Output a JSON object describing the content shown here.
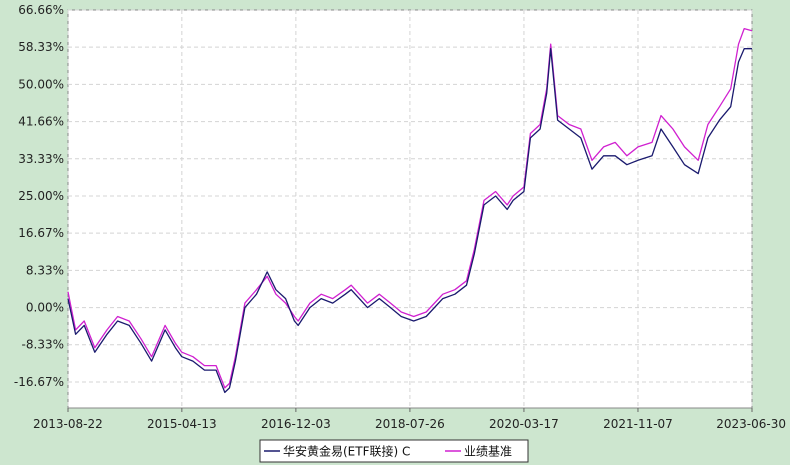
{
  "chart_data": {
    "type": "line",
    "title": "",
    "xlabel": "",
    "ylabel": "",
    "ylim": [
      -22.5,
      66.66
    ],
    "x_ticks": [
      "2013-08-22",
      "2015-04-13",
      "2016-12-03",
      "2018-07-26",
      "2020-03-17",
      "2021-11-07",
      "2023-06-30"
    ],
    "y_ticks": [
      "66.66%",
      "58.33%",
      "50.00%",
      "41.66%",
      "33.33%",
      "25.00%",
      "16.67%",
      "8.33%",
      "0.00%",
      "-8.33%",
      "-16.67%"
    ],
    "y_tick_values": [
      66.66,
      58.33,
      50.0,
      41.66,
      33.33,
      25.0,
      16.67,
      8.33,
      0.0,
      -8.33,
      -16.67
    ],
    "grid": true,
    "legend_position": "bottom-center",
    "x": [
      "2013-08-22",
      "2013-10-01",
      "2013-11-15",
      "2014-01-10",
      "2014-03-15",
      "2014-05-10",
      "2014-07-10",
      "2014-09-10",
      "2014-11-05",
      "2015-01-15",
      "2015-03-10",
      "2015-04-13",
      "2015-06-10",
      "2015-08-10",
      "2015-10-10",
      "2015-11-25",
      "2015-12-20",
      "2016-01-20",
      "2016-03-10",
      "2016-05-10",
      "2016-07-05",
      "2016-08-20",
      "2016-10-10",
      "2016-11-25",
      "2016-12-15",
      "2017-02-15",
      "2017-04-15",
      "2017-06-15",
      "2017-08-20",
      "2017-09-20",
      "2017-12-15",
      "2018-02-15",
      "2018-04-15",
      "2018-06-10",
      "2018-08-15",
      "2018-10-20",
      "2019-01-15",
      "2019-03-20",
      "2019-05-20",
      "2019-06-30",
      "2019-08-20",
      "2019-10-20",
      "2019-12-20",
      "2020-01-20",
      "2020-03-17",
      "2020-04-20",
      "2020-06-10",
      "2020-07-15",
      "2020-08-05",
      "2020-09-10",
      "2020-11-10",
      "2021-01-10",
      "2021-03-10",
      "2021-05-10",
      "2021-07-10",
      "2021-09-10",
      "2021-11-07",
      "2022-01-20",
      "2022-03-08",
      "2022-05-10",
      "2022-07-10",
      "2022-09-20",
      "2022-11-10",
      "2023-01-10",
      "2023-03-10",
      "2023-04-20",
      "2023-05-20",
      "2023-06-30"
    ],
    "series": [
      {
        "name": "华安黄金易(ETF联接) C",
        "color": "#1a1a6e",
        "values": [
          2.0,
          -6.0,
          -4.0,
          -10.0,
          -6.0,
          -3.0,
          -4.0,
          -8.0,
          -12.0,
          -5.0,
          -9.0,
          -11.0,
          -12.0,
          -14.0,
          -14.0,
          -19.0,
          -18.0,
          -12.0,
          0.0,
          3.0,
          8.0,
          4.0,
          2.0,
          -3.0,
          -4.0,
          0.0,
          2.0,
          1.0,
          3.0,
          4.0,
          0.0,
          2.0,
          0.0,
          -2.0,
          -3.0,
          -2.0,
          2.0,
          3.0,
          5.0,
          12.0,
          23.0,
          25.0,
          22.0,
          24.0,
          26.0,
          38.0,
          40.0,
          48.0,
          58.0,
          42.0,
          40.0,
          38.0,
          31.0,
          34.0,
          34.0,
          32.0,
          33.0,
          34.0,
          40.0,
          36.0,
          32.0,
          30.0,
          38.0,
          42.0,
          45.0,
          55.0,
          58.0,
          58.0
        ]
      },
      {
        "name": "业绩基准",
        "color": "#d020d0",
        "values": [
          3.5,
          -5.0,
          -3.0,
          -9.0,
          -5.0,
          -2.0,
          -3.0,
          -7.0,
          -11.0,
          -4.0,
          -8.0,
          -10.0,
          -11.0,
          -13.0,
          -13.0,
          -18.0,
          -17.0,
          -11.0,
          1.0,
          4.0,
          7.0,
          3.0,
          1.0,
          -2.0,
          -3.0,
          1.0,
          3.0,
          2.0,
          4.0,
          5.0,
          1.0,
          3.0,
          1.0,
          -1.0,
          -2.0,
          -1.0,
          3.0,
          4.0,
          6.0,
          13.0,
          24.0,
          26.0,
          23.0,
          25.0,
          27.0,
          39.0,
          41.0,
          49.0,
          59.0,
          43.0,
          41.0,
          40.0,
          33.0,
          36.0,
          37.0,
          34.0,
          36.0,
          37.0,
          43.0,
          40.0,
          36.0,
          33.0,
          41.0,
          45.0,
          49.0,
          59.0,
          62.5,
          62.0
        ]
      }
    ]
  }
}
